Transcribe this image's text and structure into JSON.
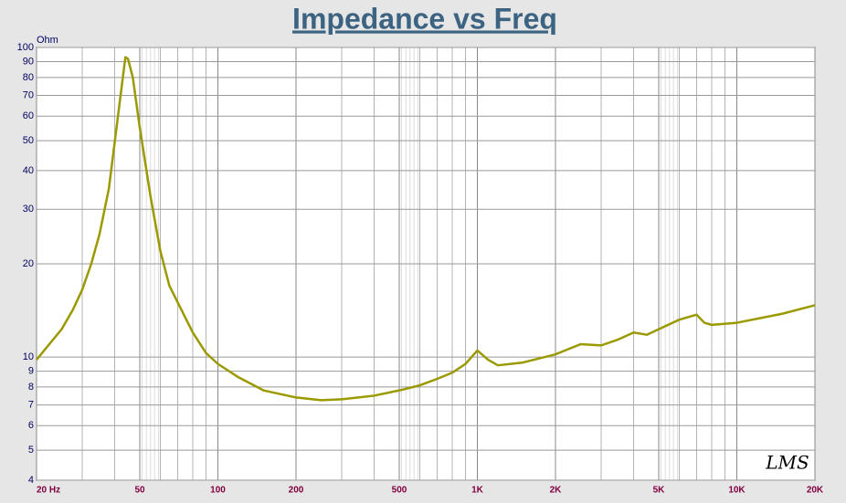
{
  "chart_data": {
    "type": "line",
    "title": "Impedance vs Freq",
    "y_unit": "Ohm",
    "annotation": "LMS",
    "x_log": true,
    "y_log": true,
    "grid": true,
    "minor_grid": true,
    "xlim": [
      20,
      20000
    ],
    "ylim": [
      4,
      100
    ],
    "xticks": [
      {
        "value": 20,
        "label": "20 Hz"
      },
      50,
      100,
      200,
      500,
      {
        "value": 1000,
        "label": "1K"
      },
      {
        "value": 2000,
        "label": "2K"
      },
      {
        "value": 5000,
        "label": "5K"
      },
      {
        "value": 10000,
        "label": "10K"
      },
      {
        "value": 20000,
        "label": "20K"
      }
    ],
    "yticks": [
      4,
      5,
      6,
      7,
      8,
      9,
      10,
      20,
      30,
      40,
      50,
      60,
      70,
      80,
      90,
      100
    ],
    "x": [
      20,
      22,
      25,
      27.6,
      30,
      32.5,
      35,
      38,
      41.4,
      44,
      45,
      47,
      50,
      55,
      60,
      65,
      70,
      80,
      90,
      100,
      120,
      150,
      200,
      250,
      300,
      400,
      500,
      600,
      700,
      800,
      900,
      1000,
      1100,
      1200,
      1500,
      2000,
      2500,
      3000,
      3500,
      4000,
      4500,
      5000,
      6000,
      7000,
      7500,
      8000,
      10000,
      15000,
      20000
    ],
    "series": [
      {
        "name": "Impedance",
        "color": "#9a9a00",
        "values": [
          9.8,
          10.8,
          12.3,
          14.2,
          16.5,
          20,
          25,
          35,
          62,
          93,
          92,
          80,
          55,
          33,
          22,
          17,
          15,
          12,
          10.3,
          9.5,
          8.6,
          7.8,
          7.4,
          7.25,
          7.3,
          7.5,
          7.8,
          8.1,
          8.5,
          8.9,
          9.5,
          10.5,
          9.8,
          9.4,
          9.6,
          10.2,
          11.0,
          10.9,
          11.4,
          12.0,
          11.8,
          12.3,
          13.2,
          13.7,
          12.9,
          12.7,
          12.9,
          13.8,
          14.7
        ]
      }
    ]
  }
}
